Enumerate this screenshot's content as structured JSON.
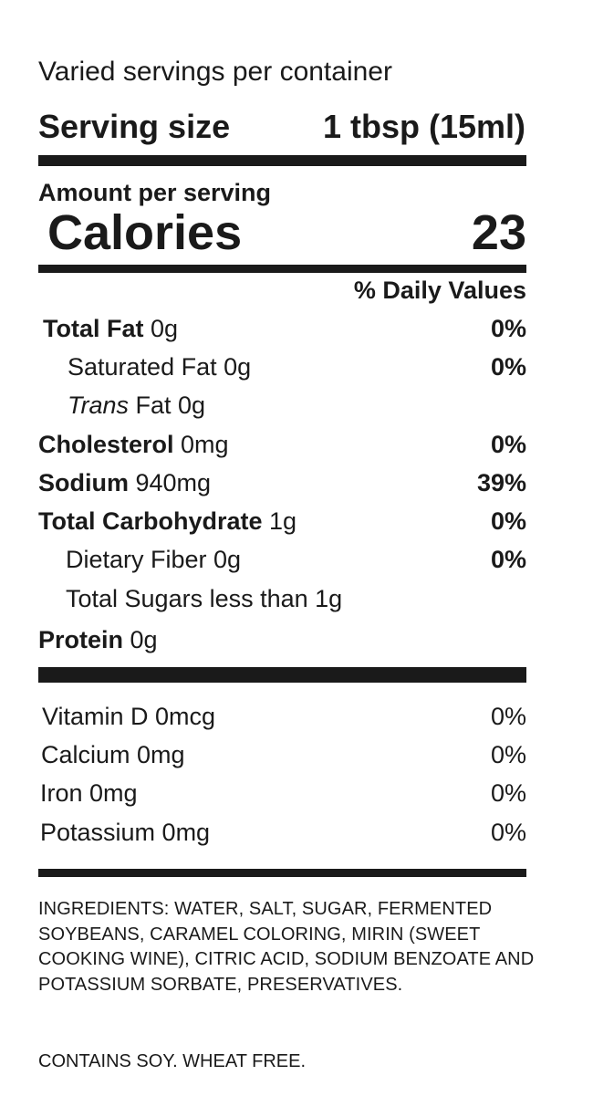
{
  "label": {
    "servings_per_container": "Varied servings per container",
    "serving_size_label": "Serving size",
    "serving_size_value": "1 tbsp (15ml)",
    "amount_per_serving": "Amount per serving",
    "calories_label": "Calories",
    "calories_value": "23",
    "daily_values_header": "% Daily Values",
    "nutrients": [
      {
        "bold": "Total Fat",
        "rest": " 0g",
        "dv": "0%"
      },
      {
        "bold": "",
        "rest": "Saturated Fat 0g",
        "dv": "0%"
      },
      {
        "italic": "Trans",
        "rest": " Fat 0g",
        "dv": ""
      },
      {
        "bold": "Cholesterol",
        "rest": " 0mg",
        "dv": "0%"
      },
      {
        "bold": "Sodium",
        "rest": " 940mg",
        "dv": "39%"
      },
      {
        "bold": "Total Carbohydrate",
        "rest": " 1g",
        "dv": "0%"
      },
      {
        "bold": "",
        "rest": "Dietary Fiber 0g",
        "dv": "0%"
      },
      {
        "bold": "",
        "rest": "Total Sugars less than 1g",
        "dv": ""
      },
      {
        "bold": "Protein",
        "rest": " 0g",
        "dv": ""
      }
    ],
    "vitamins": [
      {
        "name": "Vitamin D 0mcg",
        "dv": "0%"
      },
      {
        "name": "Calcium 0mg",
        "dv": "0%"
      },
      {
        "name": "Iron 0mg",
        "dv": "0%"
      },
      {
        "name": "Potassium 0mg",
        "dv": "0%"
      }
    ],
    "ingredients": "INGREDIENTS: WATER, SALT, SUGAR, FERMENTED SOYBEANS, CARAMEL COLORING, MIRIN (SWEET COOKING WINE), CITRIC ACID, SODIUM BENZOATE AND POTASSIUM SORBATE, PRESERVATIVES.",
    "contains": "CONTAINS SOY. WHEAT FREE."
  }
}
